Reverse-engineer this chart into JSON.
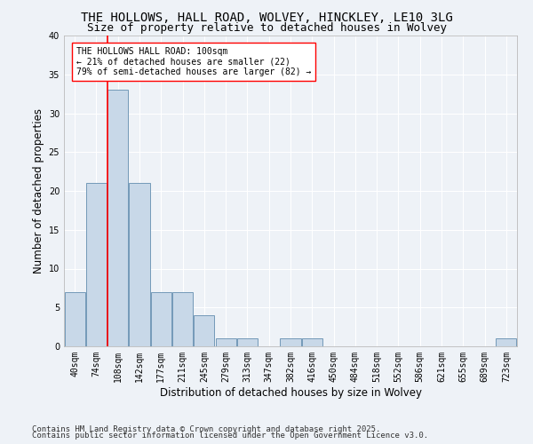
{
  "title_line1": "THE HOLLOWS, HALL ROAD, WOLVEY, HINCKLEY, LE10 3LG",
  "title_line2": "Size of property relative to detached houses in Wolvey",
  "xlabel": "Distribution of detached houses by size in Wolvey",
  "ylabel": "Number of detached properties",
  "footnote1": "Contains HM Land Registry data © Crown copyright and database right 2025.",
  "footnote2": "Contains public sector information licensed under the Open Government Licence v3.0.",
  "bar_labels": [
    "40sqm",
    "74sqm",
    "108sqm",
    "142sqm",
    "177sqm",
    "211sqm",
    "245sqm",
    "279sqm",
    "313sqm",
    "347sqm",
    "382sqm",
    "416sqm",
    "450sqm",
    "484sqm",
    "518sqm",
    "552sqm",
    "586sqm",
    "621sqm",
    "655sqm",
    "689sqm",
    "723sqm"
  ],
  "bar_values": [
    7,
    21,
    33,
    21,
    7,
    7,
    4,
    1,
    1,
    0,
    1,
    1,
    0,
    0,
    0,
    0,
    0,
    0,
    0,
    0,
    1
  ],
  "bar_color": "#c8d8e8",
  "bar_edge_color": "#7399b8",
  "red_line_x": 1.5,
  "annotation_text": "THE HOLLOWS HALL ROAD: 100sqm\n← 21% of detached houses are smaller (22)\n79% of semi-detached houses are larger (82) →",
  "ylim": [
    0,
    40
  ],
  "yticks": [
    0,
    5,
    10,
    15,
    20,
    25,
    30,
    35,
    40
  ],
  "bg_color": "#eef2f7",
  "plot_bg_color": "#eef2f7",
  "grid_color": "#ffffff",
  "title_fontsize": 10,
  "subtitle_fontsize": 9,
  "axis_label_fontsize": 8.5,
  "tick_fontsize": 7,
  "annotation_fontsize": 7,
  "footnote_fontsize": 6.5
}
